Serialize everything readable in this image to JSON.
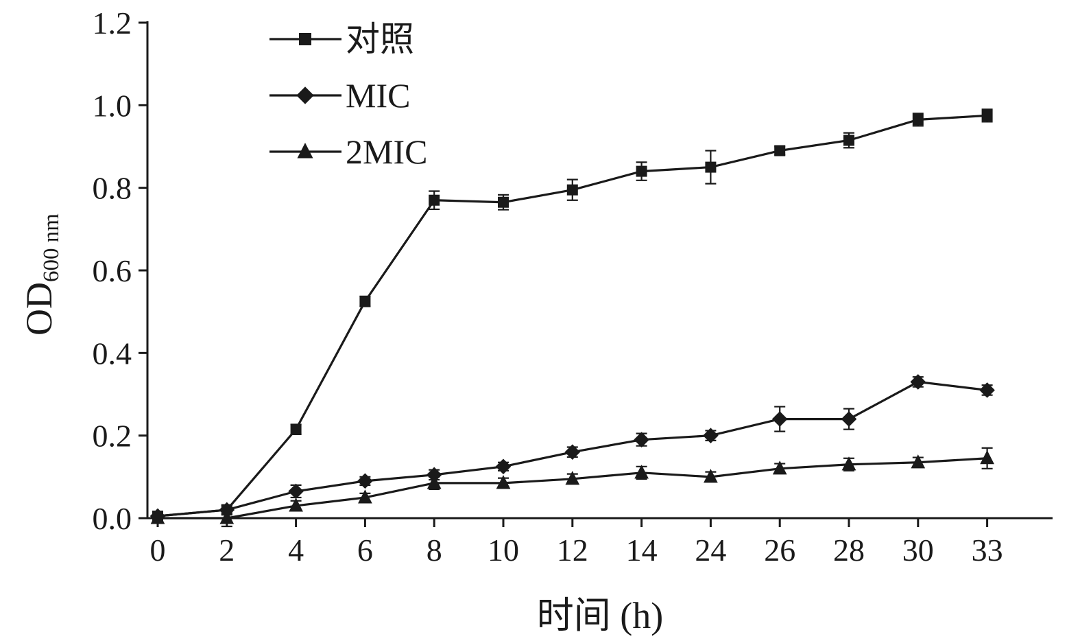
{
  "chart_data": {
    "type": "line",
    "title": "",
    "xlabel": "时间 (h)",
    "ylabel": "OD",
    "ylabel_sub": "600 nm",
    "ylim": [
      0.0,
      1.2
    ],
    "yticks": [
      0.0,
      0.2,
      0.4,
      0.6,
      0.8,
      1.0,
      1.2
    ],
    "categories": [
      "0",
      "2",
      "4",
      "6",
      "8",
      "10",
      "12",
      "14",
      "24",
      "26",
      "28",
      "30",
      "33"
    ],
    "grid": false,
    "legend_position": "top-left-inside",
    "line_color": "#1a1a1a",
    "series": [
      {
        "name": "对照",
        "marker": "square",
        "values": [
          0.005,
          0.02,
          0.215,
          0.525,
          0.77,
          0.765,
          0.795,
          0.84,
          0.85,
          0.89,
          0.915,
          0.965,
          0.975
        ],
        "errors": [
          0.005,
          0.01,
          0.012,
          0.012,
          0.022,
          0.018,
          0.025,
          0.022,
          0.04,
          0.01,
          0.018,
          0.015,
          0.015
        ]
      },
      {
        "name": "MIC",
        "marker": "diamond",
        "values": [
          0.005,
          0.02,
          0.065,
          0.09,
          0.105,
          0.125,
          0.16,
          0.19,
          0.2,
          0.24,
          0.24,
          0.33,
          0.31
        ],
        "errors": [
          0.005,
          0.012,
          0.015,
          0.01,
          0.012,
          0.01,
          0.012,
          0.015,
          0.012,
          0.03,
          0.025,
          0.012,
          0.012
        ]
      },
      {
        "name": "2MIC",
        "marker": "triangle",
        "values": [
          0.0,
          0.0,
          0.03,
          0.05,
          0.085,
          0.085,
          0.095,
          0.11,
          0.1,
          0.12,
          0.13,
          0.135,
          0.145
        ],
        "errors": [
          0.005,
          0.02,
          0.012,
          0.01,
          0.015,
          0.012,
          0.012,
          0.015,
          0.012,
          0.012,
          0.015,
          0.012,
          0.025
        ]
      }
    ]
  }
}
